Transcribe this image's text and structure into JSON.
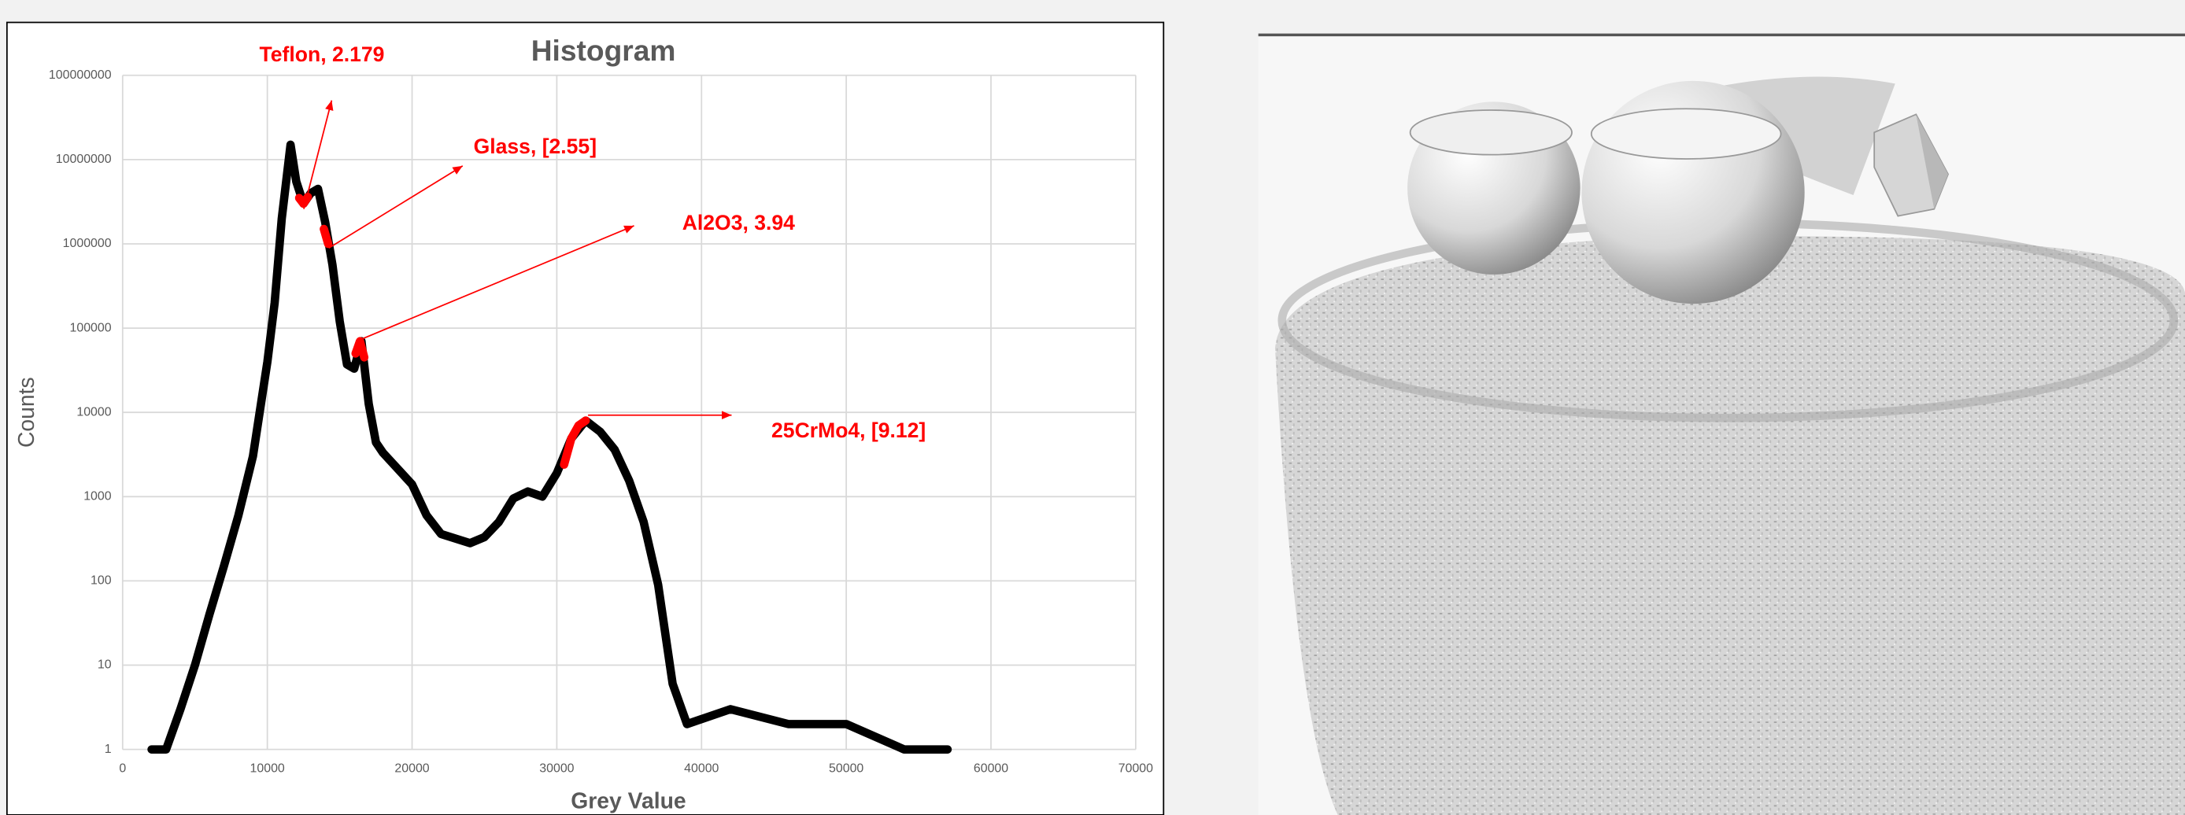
{
  "chart_data": {
    "type": "line",
    "title": "Histogram",
    "x_label": "Grey Value",
    "y_label": "Counts",
    "log_y": true,
    "grid": true,
    "xlim": [
      0,
      70000
    ],
    "xticks": [
      0,
      10000,
      20000,
      30000,
      40000,
      50000,
      60000,
      70000
    ],
    "ylim": [
      1,
      100000000
    ],
    "yticks": [
      1,
      10,
      100,
      1000,
      10000,
      100000,
      1000000,
      10000000,
      100000000
    ],
    "series": [
      {
        "color": "#000000",
        "x": [
          2000,
          3000,
          4000,
          5000,
          6000,
          7000,
          8000,
          9000,
          10000,
          10500,
          11000,
          11600,
          12000,
          12500,
          13000,
          13500,
          14000,
          14500,
          15000,
          15500,
          16000,
          16500,
          17000,
          17500,
          18000,
          20000,
          21000,
          22000,
          24000,
          25000,
          26000,
          27000,
          28000,
          29000,
          30000,
          31000,
          32000,
          33000,
          34000,
          35000,
          36000,
          37000,
          38000,
          39000,
          42000,
          46000,
          50000,
          54000,
          57000
        ],
        "values": [
          1,
          1,
          3,
          10,
          40,
          150,
          600,
          3000,
          40000,
          200000,
          2000000,
          15000000,
          5500000,
          3000000,
          4000000,
          4500000,
          1800000,
          560000,
          120000,
          37000,
          33000,
          70000,
          12600,
          4400,
          3300,
          1400,
          600,
          360,
          280,
          330,
          500,
          950,
          1150,
          1000,
          1900,
          4900,
          8000,
          5900,
          3600,
          1550,
          500,
          90,
          6,
          2,
          3,
          2,
          2,
          1,
          1
        ]
      },
      {
        "color": "#ff0000",
        "x": [
          12200,
          12500,
          12800,
          null,
          13900,
          14200,
          null,
          16100,
          16400,
          16700,
          null,
          30500,
          31000,
          31500,
          32000
        ],
        "values": [
          3500000,
          3000000,
          3600000,
          null,
          1500000,
          1000000,
          null,
          50000,
          70000,
          45000,
          null,
          2400,
          4900,
          7000,
          8000
        ]
      }
    ],
    "annotations": [
      "Teflon, 2.179",
      "Glass, [2.55]",
      "Al2O3, 3.94",
      "25CrMo4, [9.12]"
    ]
  }
}
